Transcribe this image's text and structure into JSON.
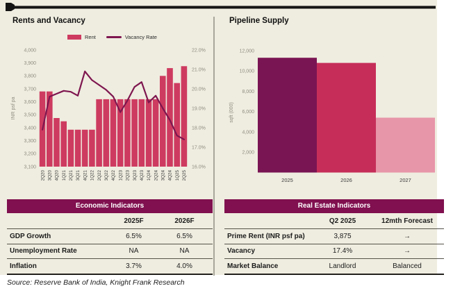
{
  "page": {
    "left_title": "Rents and Vacancy",
    "right_title": "Pipeline Supply",
    "source_note": "Source: Reserve Bank of India, Knight Frank Research"
  },
  "colors": {
    "background_beige": "#efede0",
    "rent_bar": "#ce3b60",
    "vacancy_line": "#7e164f",
    "table_header": "#80104f",
    "pipeline_bars": [
      "#7a1553",
      "#c62e59",
      "#e795a9"
    ],
    "axis_text": "#8f8c80",
    "category_text": "#3c3c3c"
  },
  "chart_data": [
    {
      "type": "bar+line",
      "title": "Rents and Vacancy",
      "categories": [
        "2Q20",
        "3Q20",
        "4Q20",
        "1Q21",
        "2Q21",
        "3Q21",
        "4Q21",
        "1Q22",
        "2Q22",
        "3Q22",
        "4Q22",
        "1Q23",
        "2Q23",
        "3Q23",
        "4Q23",
        "1Q24",
        "2Q24",
        "3Q24",
        "4Q24",
        "1Q25",
        "2Q25"
      ],
      "series": [
        {
          "name": "Rent",
          "type": "bar",
          "axis": "left",
          "values": [
            3680,
            3680,
            3475,
            3450,
            3385,
            3385,
            3385,
            3385,
            3620,
            3620,
            3620,
            3620,
            3620,
            3620,
            3620,
            3620,
            3620,
            3800,
            3860,
            3745,
            3875
          ]
        },
        {
          "name": "Vacancy Rate",
          "type": "line",
          "axis": "right",
          "values": [
            17.9,
            19.6,
            19.75,
            19.9,
            19.85,
            19.65,
            20.9,
            20.45,
            20.2,
            19.95,
            19.6,
            18.8,
            19.4,
            20.1,
            20.35,
            19.3,
            19.65,
            19.0,
            18.4,
            17.6,
            17.4
          ]
        }
      ],
      "ylabel_left": "INR psf pa",
      "ylim_left": [
        3100,
        4000
      ],
      "yticks_left": [
        3100,
        3200,
        3300,
        3400,
        3500,
        3600,
        3700,
        3800,
        3900,
        4000
      ],
      "ylim_right": [
        16,
        22
      ],
      "yticks_right": [
        16,
        17,
        18,
        19,
        20,
        21,
        22
      ],
      "legend_position": "top",
      "grid": false
    },
    {
      "type": "bar",
      "title": "Pipeline Supply",
      "categories": [
        "2025",
        "2026",
        "2027"
      ],
      "values": [
        11300,
        10800,
        5400
      ],
      "ylabel": "sqft (000)",
      "ylim": [
        0,
        12600
      ],
      "yticks": [
        2000,
        4000,
        6000,
        8000,
        10000,
        12000
      ],
      "grid": false
    }
  ],
  "tables": {
    "economic": {
      "title": "Economic Indicators",
      "columns": [
        "",
        "2025F",
        "2026F"
      ],
      "rows": [
        {
          "label": "GDP Growth",
          "v1": "6.5%",
          "v2": "6.5%"
        },
        {
          "label": "Unemployment Rate",
          "v1": "NA",
          "v2": "NA"
        },
        {
          "label": "Inflation",
          "v1": "3.7%",
          "v2": "4.0%"
        }
      ]
    },
    "real_estate": {
      "title": "Real Estate Indicators",
      "columns": [
        "",
        "Q2 2025",
        "12mth Forecast"
      ],
      "rows": [
        {
          "label": "Prime Rent (INR psf pa)",
          "v1": "3,875",
          "v2": "→"
        },
        {
          "label": "Vacancy",
          "v1": "17.4%",
          "v2": "→"
        },
        {
          "label": "Market Balance",
          "v1": "Landlord",
          "v2": "Balanced"
        }
      ]
    }
  }
}
